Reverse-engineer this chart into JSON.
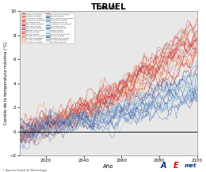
{
  "title": "TERUEL",
  "subtitle": "ANUAL",
  "xlabel": "Año",
  "ylabel": "Cambio de la temperatura máxima (°C)",
  "x_start": 2006,
  "x_end": 2100,
  "ylim": [
    -2,
    10
  ],
  "yticks": [
    -2,
    0,
    2,
    4,
    6,
    8,
    10
  ],
  "xlim": [
    2006,
    2100
  ],
  "xticks": [
    2020,
    2040,
    2060,
    2080,
    2100
  ],
  "background_color": "#e8e8e8",
  "footer_text": "© Agencia Estatal de Meteorología",
  "rcp85_colors": [
    "#c0392b",
    "#d73027",
    "#a50026",
    "#e74c3c",
    "#c0392b",
    "#f46d43",
    "#fdae61"
  ],
  "rcp45_colors": [
    "#4575b4",
    "#313695",
    "#2166ac",
    "#74add1",
    "#abd9e9"
  ],
  "legend_col1": [
    [
      "#c0392b",
      "ACCESS1-0_RCP85"
    ],
    [
      "#d73027",
      "ACCESS1-3_RCP85"
    ],
    [
      "#f46d43",
      "bcc-csm1-1_RCP85"
    ],
    [
      "#d73027",
      "bcc-csm1-1-m_RCP85"
    ],
    [
      "#c0392b",
      "BNU-ESM_RCP85"
    ],
    [
      "#d73027",
      "CMCC-CESM_RCP85"
    ],
    [
      "#a50026",
      "CMCC-CM_RCP85"
    ],
    [
      "#d73027",
      "CMCC-CMS_RCP85"
    ],
    [
      "#c0392b",
      "HadGEM2-CC_RCP85"
    ],
    [
      "#e74c3c",
      "inmcm4_RCP85"
    ],
    [
      "#d73027",
      "MIROC5_RCP85"
    ],
    [
      "#f46d43",
      "MPI-ESM-LR_P_RCP85"
    ],
    [
      "#f46d43",
      "MPI-ESM-MR_RCP85"
    ],
    [
      "#fdae61",
      "MPI-ESM-P_RCP85"
    ],
    [
      "#fdae61",
      "bcc-csm1-1_RCP85"
    ],
    [
      "#f46d43",
      "IPSL-CM5A-LR_RCP85"
    ]
  ],
  "legend_col2": [
    [
      "#4575b4",
      "MIROC5_RCP45"
    ],
    [
      "#313695",
      "MIROC-ESM-CHEM_RCP45"
    ],
    [
      "#4575b4",
      "MPI-ESM-LR_RCP45"
    ],
    [
      "#74add1",
      "bcc-csm1-1_RCP45"
    ],
    [
      "#abd9e9",
      "bcc-csm1-1-m_t_RCP45"
    ],
    [
      "#4575b4",
      "BNU-ESM_RCP45"
    ],
    [
      "#313695",
      "CMCC-CMS_RCP45"
    ],
    [
      "#74add1",
      "CCSM4_RCP45"
    ],
    [
      "#abd9e9",
      "inmcm4_RCP45"
    ],
    [
      "#74add1",
      "IPSL-CM5A-LR_RCP45"
    ],
    [
      "#4575b4",
      "MIROC5_RCP45"
    ],
    [
      "#313695",
      "MPI-ESM-LR_P_RCP45"
    ],
    [
      "#74add1",
      "MPI-ESM-MR_RCP45"
    ],
    [
      "#abd9e9",
      "MPI-ESM-P_RCP45"
    ]
  ]
}
